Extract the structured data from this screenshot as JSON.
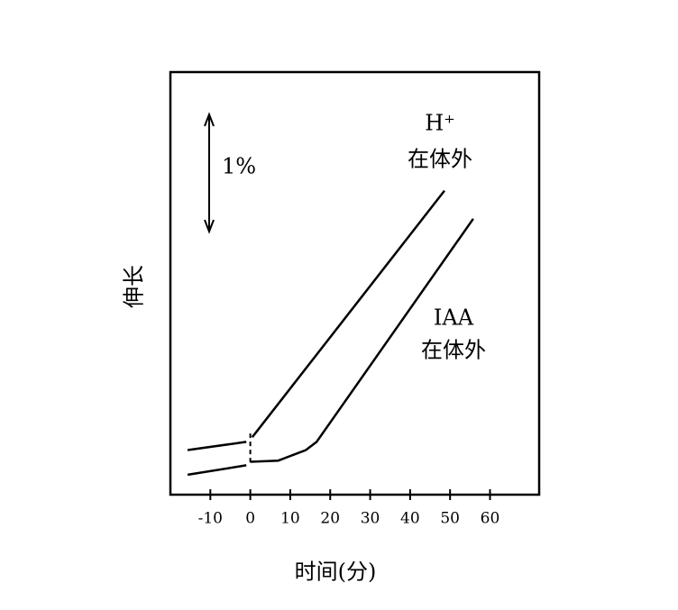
{
  "chart_data": {
    "type": "line",
    "ylabel": "伸长",
    "xlabel": "时间(分)",
    "scale_bar_label": "1%",
    "xlim": [
      -20,
      72.3
    ],
    "ylim": [
      0,
      3.6
    ],
    "xticks": [
      -10,
      0,
      10,
      20,
      30,
      40,
      50,
      60
    ],
    "series": [
      {
        "name": "H⁺",
        "note": "在体外",
        "color": "#000000",
        "x": [
          -15.7,
          -1,
          null,
          0.5,
          48.6
        ],
        "values": [
          0.38,
          0.45,
          null,
          0.49,
          2.59
        ]
      },
      {
        "name": "IAA",
        "note": "在体外",
        "color": "#000000",
        "x": [
          -15.7,
          -1,
          null,
          0,
          7,
          13.9,
          16.6,
          55.8
        ],
        "values": [
          0.17,
          0.25,
          null,
          0.28,
          0.29,
          0.38,
          0.45,
          2.35
        ]
      }
    ]
  }
}
